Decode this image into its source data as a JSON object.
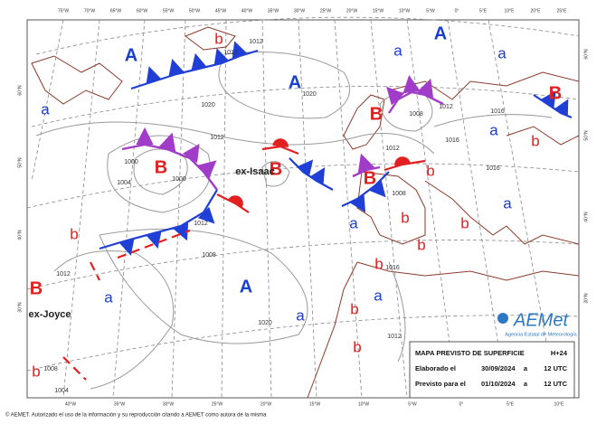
{
  "map": {
    "pressure_centers": [
      "A",
      "A",
      "A",
      "A",
      "B",
      "B",
      "B",
      "B",
      "B",
      "B",
      "a",
      "a",
      "a",
      "a",
      "a",
      "a",
      "a",
      "a",
      "a",
      "b",
      "b",
      "b",
      "b",
      "b",
      "b",
      "b",
      "b",
      "b",
      "b",
      "b"
    ],
    "storm_names": [
      "ex-Isaac",
      "ex-Joyce"
    ],
    "isobar_labels": [
      "1012",
      "1012",
      "1012",
      "1012",
      "1012",
      "1012",
      "1012",
      "1012",
      "1020",
      "1020",
      "1020",
      "1016",
      "1016",
      "1016",
      "1016",
      "1004",
      "1004",
      "1008",
      "1008",
      "1008",
      "1008",
      "1000",
      "1000"
    ],
    "longitude_labels_top": [
      "75°W",
      "70°W",
      "65°W",
      "60°W",
      "55°W",
      "50°W",
      "45°W",
      "40°W",
      "35°W",
      "30°W",
      "25°W",
      "20°W",
      "15°W",
      "10°W",
      "5°W",
      "0°",
      "5°E",
      "10°E",
      "20°E",
      "25°E"
    ],
    "longitude_labels_bottom": [
      "40°W",
      "35°W",
      "30°W",
      "25°W",
      "20°W",
      "15°W",
      "10°W",
      "5°W",
      "0°",
      "5°E",
      "10°E"
    ],
    "latitude_labels": [
      "60°N",
      "50°N",
      "40°N",
      "30°N"
    ]
  },
  "logo": {
    "name": "AEMet",
    "subtitle": "Agencia Estatal de Meteorología"
  },
  "info_box": {
    "title": "MAPA PREVISTO DE SUPERFICIE",
    "forecast_step": "H+24",
    "rows": [
      [
        "Elaborado el",
        "30/09/2024",
        "a",
        "12 UTC"
      ],
      [
        "Previsto para el",
        "01/10/2024",
        "a",
        "12 UTC"
      ]
    ]
  },
  "copyright": "© AEMET. Autorizado el uso de la información y su reproducción citando a AEMET como autora de la misma"
}
